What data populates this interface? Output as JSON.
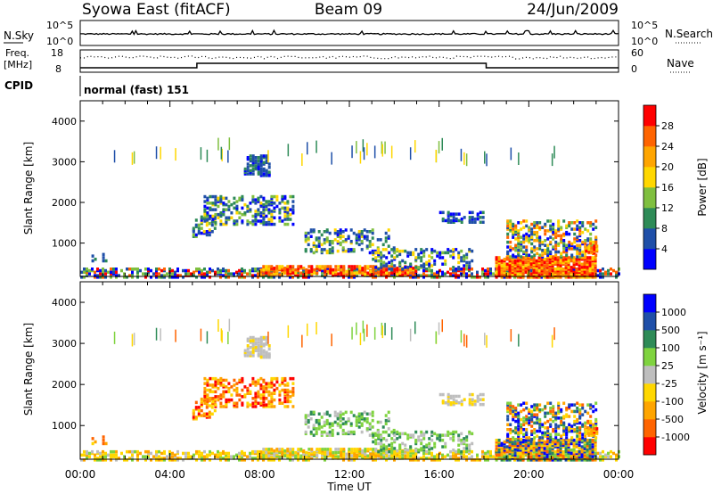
{
  "header": {
    "station": "Syowa East (fitACF)",
    "beam": "Beam 09",
    "date": "24/Jun/2009"
  },
  "noise_panel": {
    "left_label": "N.Sky",
    "right_label": "N.Search",
    "left_ticks": [
      "10^5",
      "10^0"
    ],
    "right_ticks": [
      "10^5",
      "10^0"
    ]
  },
  "freq_panel": {
    "left_label_1": "Freq.",
    "left_label_2": "[MHz]",
    "right_label": "Nave",
    "left_ticks": [
      "18",
      "8"
    ],
    "right_ticks": [
      "60",
      "0"
    ]
  },
  "cpid": {
    "label": "CPID",
    "mode": "normal (fast) 151"
  },
  "colors": {
    "power": [
      "#0000ff",
      "#1f4fa8",
      "#2e8b57",
      "#7fbf3f",
      "#ffd700",
      "#ffa500",
      "#ff6400",
      "#ff0000"
    ],
    "velocity": [
      "#ff0000",
      "#ff6400",
      "#ffa500",
      "#ffd700",
      "#bebebe",
      "#7fd33f",
      "#2e8b57",
      "#1f4fa8",
      "#0000ff"
    ]
  },
  "chart_data": [
    {
      "type": "heatmap",
      "name": "power",
      "ylabel": "Slant Range [km]",
      "y_ticks": [
        "1000",
        "2000",
        "3000",
        "4000"
      ],
      "ylim": [
        180,
        4500
      ],
      "colorbar_label": "Power [dB]",
      "colorbar_ticks": [
        "4",
        "8",
        "12",
        "16",
        "20",
        "24",
        "28"
      ],
      "colorbar_range": [
        0,
        30
      ]
    },
    {
      "type": "heatmap",
      "name": "velocity",
      "ylabel": "Slant Range [km]",
      "y_ticks": [
        "1000",
        "2000",
        "3000",
        "4000"
      ],
      "ylim": [
        180,
        4500
      ],
      "colorbar_label": "Velocity [m s⁻¹]",
      "colorbar_ticks": [
        "1000",
        "500",
        "100",
        "25",
        "-25",
        "-100",
        "-500",
        "-1000"
      ]
    },
    {
      "type": "line",
      "name": "time-axis",
      "xlabel": "Time UT",
      "x_ticks": [
        "00:00",
        "04:00",
        "08:00",
        "12:00",
        "16:00",
        "20:00",
        "00:00"
      ],
      "xlim_hours": [
        0,
        24
      ],
      "frequency_steps": [
        {
          "start_hour": 0.0,
          "end_hour": 5.2,
          "freq_mhz": 10
        },
        {
          "start_hour": 5.2,
          "end_hour": 18.1,
          "freq_mhz": 12
        },
        {
          "start_hour": 18.1,
          "end_hour": 24.0,
          "freq_mhz": 10
        }
      ],
      "nave_approx": 40,
      "noise_sky_level_log10": 2.3
    }
  ]
}
